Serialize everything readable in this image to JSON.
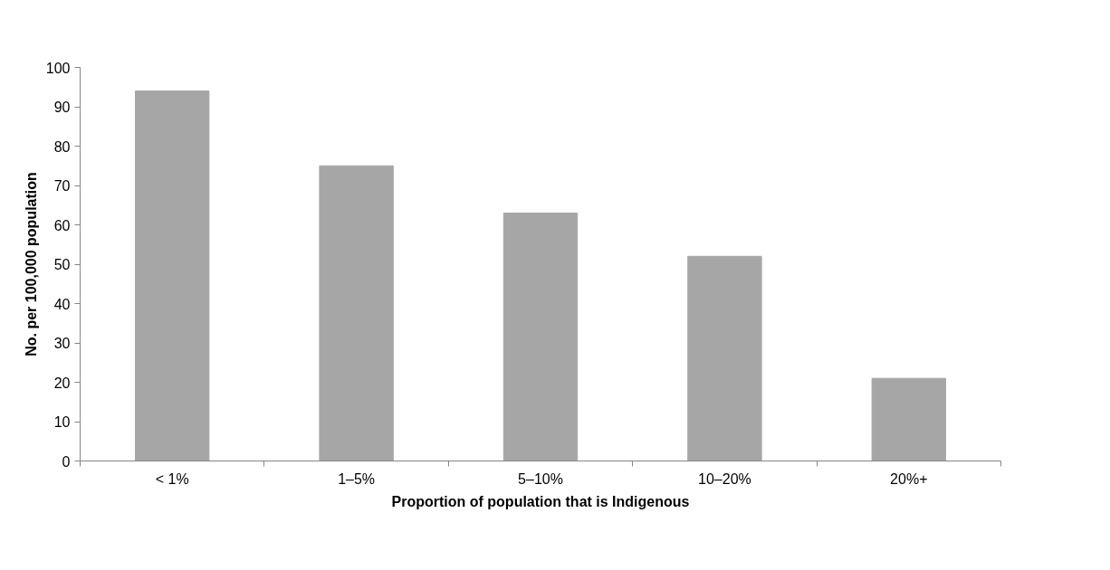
{
  "chart_data": {
    "type": "bar",
    "xlabel": "Proportion of population that is Indigenous",
    "ylabel": "No. per 100,000 population",
    "categories": [
      "< 1%",
      "1–5%",
      "5–10%",
      "10–20%",
      "20%+"
    ],
    "values": [
      94,
      75,
      63,
      52,
      21
    ],
    "color": "#a6a6a6",
    "ylim": [
      0,
      100
    ],
    "yticks": [
      0,
      10,
      20,
      30,
      40,
      50,
      60,
      70,
      80,
      90,
      100
    ],
    "grid": false
  }
}
